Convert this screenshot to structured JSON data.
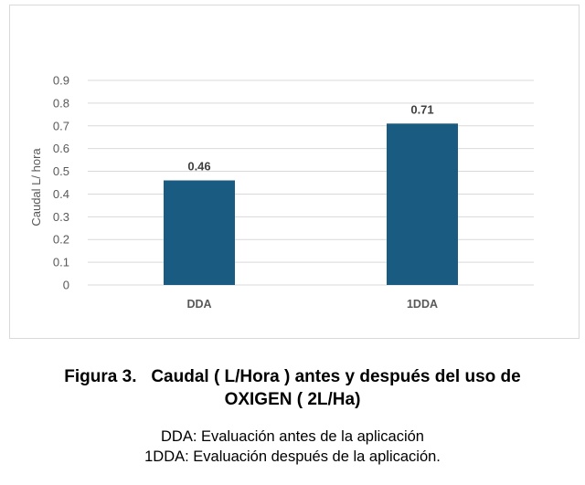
{
  "chart_data": {
    "type": "bar",
    "categories": [
      "DDA",
      "1DDA"
    ],
    "values": [
      0.46,
      0.71
    ],
    "data_labels": [
      "0.46",
      "0.71"
    ],
    "ylabel": "Caudal L/ hora",
    "xlabel": "",
    "ylim": [
      0,
      0.9
    ],
    "yticks": [
      "0",
      "0.1",
      "0.2",
      "0.3",
      "0.4",
      "0.5",
      "0.6",
      "0.7",
      "0.8",
      "0.9"
    ],
    "bar_color": "#1a5c81",
    "grid": true,
    "legend": "none"
  },
  "caption": {
    "title": "Figura 3.   Caudal ( L/Hora ) antes y después del uso de\nOXIGEN ( 2L/Ha)",
    "note_1": "DDA: Evaluación antes de la aplicación",
    "note_2": "1DDA: Evaluación después de la aplicación."
  }
}
